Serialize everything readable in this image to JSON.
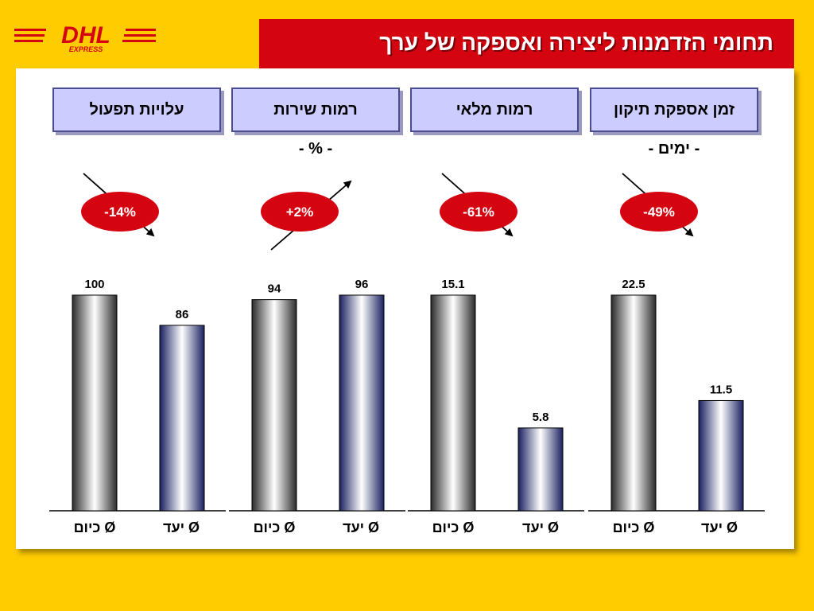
{
  "logo": {
    "name": "DHL",
    "sub": "EXPRESS"
  },
  "title": "תחומי הזדמנות ליצירה ואספקה של ערך",
  "colors": {
    "background": "#FFCC00",
    "title_bar": "#D40511",
    "header_box": "#CCCCFF",
    "badge": "#D40511",
    "bar_current": "#888888",
    "bar_target": "#2E3A80"
  },
  "chart_data": [
    {
      "type": "bar",
      "header": "עלויות תפעול",
      "unit": "",
      "change": "-14%",
      "direction": "down",
      "categories": [
        "Ø כיום",
        "Ø יעד"
      ],
      "values": [
        100,
        86
      ],
      "labels": [
        "100",
        "86"
      ]
    },
    {
      "type": "bar",
      "header": "רמות שירות",
      "unit": "- % -",
      "change": "+2%",
      "direction": "up",
      "categories": [
        "Ø כיום",
        "Ø יעד"
      ],
      "values": [
        94,
        96
      ],
      "labels": [
        "94",
        "96"
      ]
    },
    {
      "type": "bar",
      "header": "רמות מלאי",
      "unit": "",
      "change": "-61%",
      "direction": "down",
      "categories": [
        "Ø כיום",
        "Ø יעד"
      ],
      "values": [
        15.1,
        5.8
      ],
      "labels": [
        "15.1",
        "5.8"
      ]
    },
    {
      "type": "bar",
      "header": "זמן אספקת תיקון",
      "unit": "- ימים -",
      "change": "-49%",
      "direction": "down",
      "categories": [
        "Ø כיום",
        "Ø יעד"
      ],
      "values": [
        22.5,
        11.5
      ],
      "labels": [
        "22.5",
        "11.5"
      ]
    }
  ]
}
